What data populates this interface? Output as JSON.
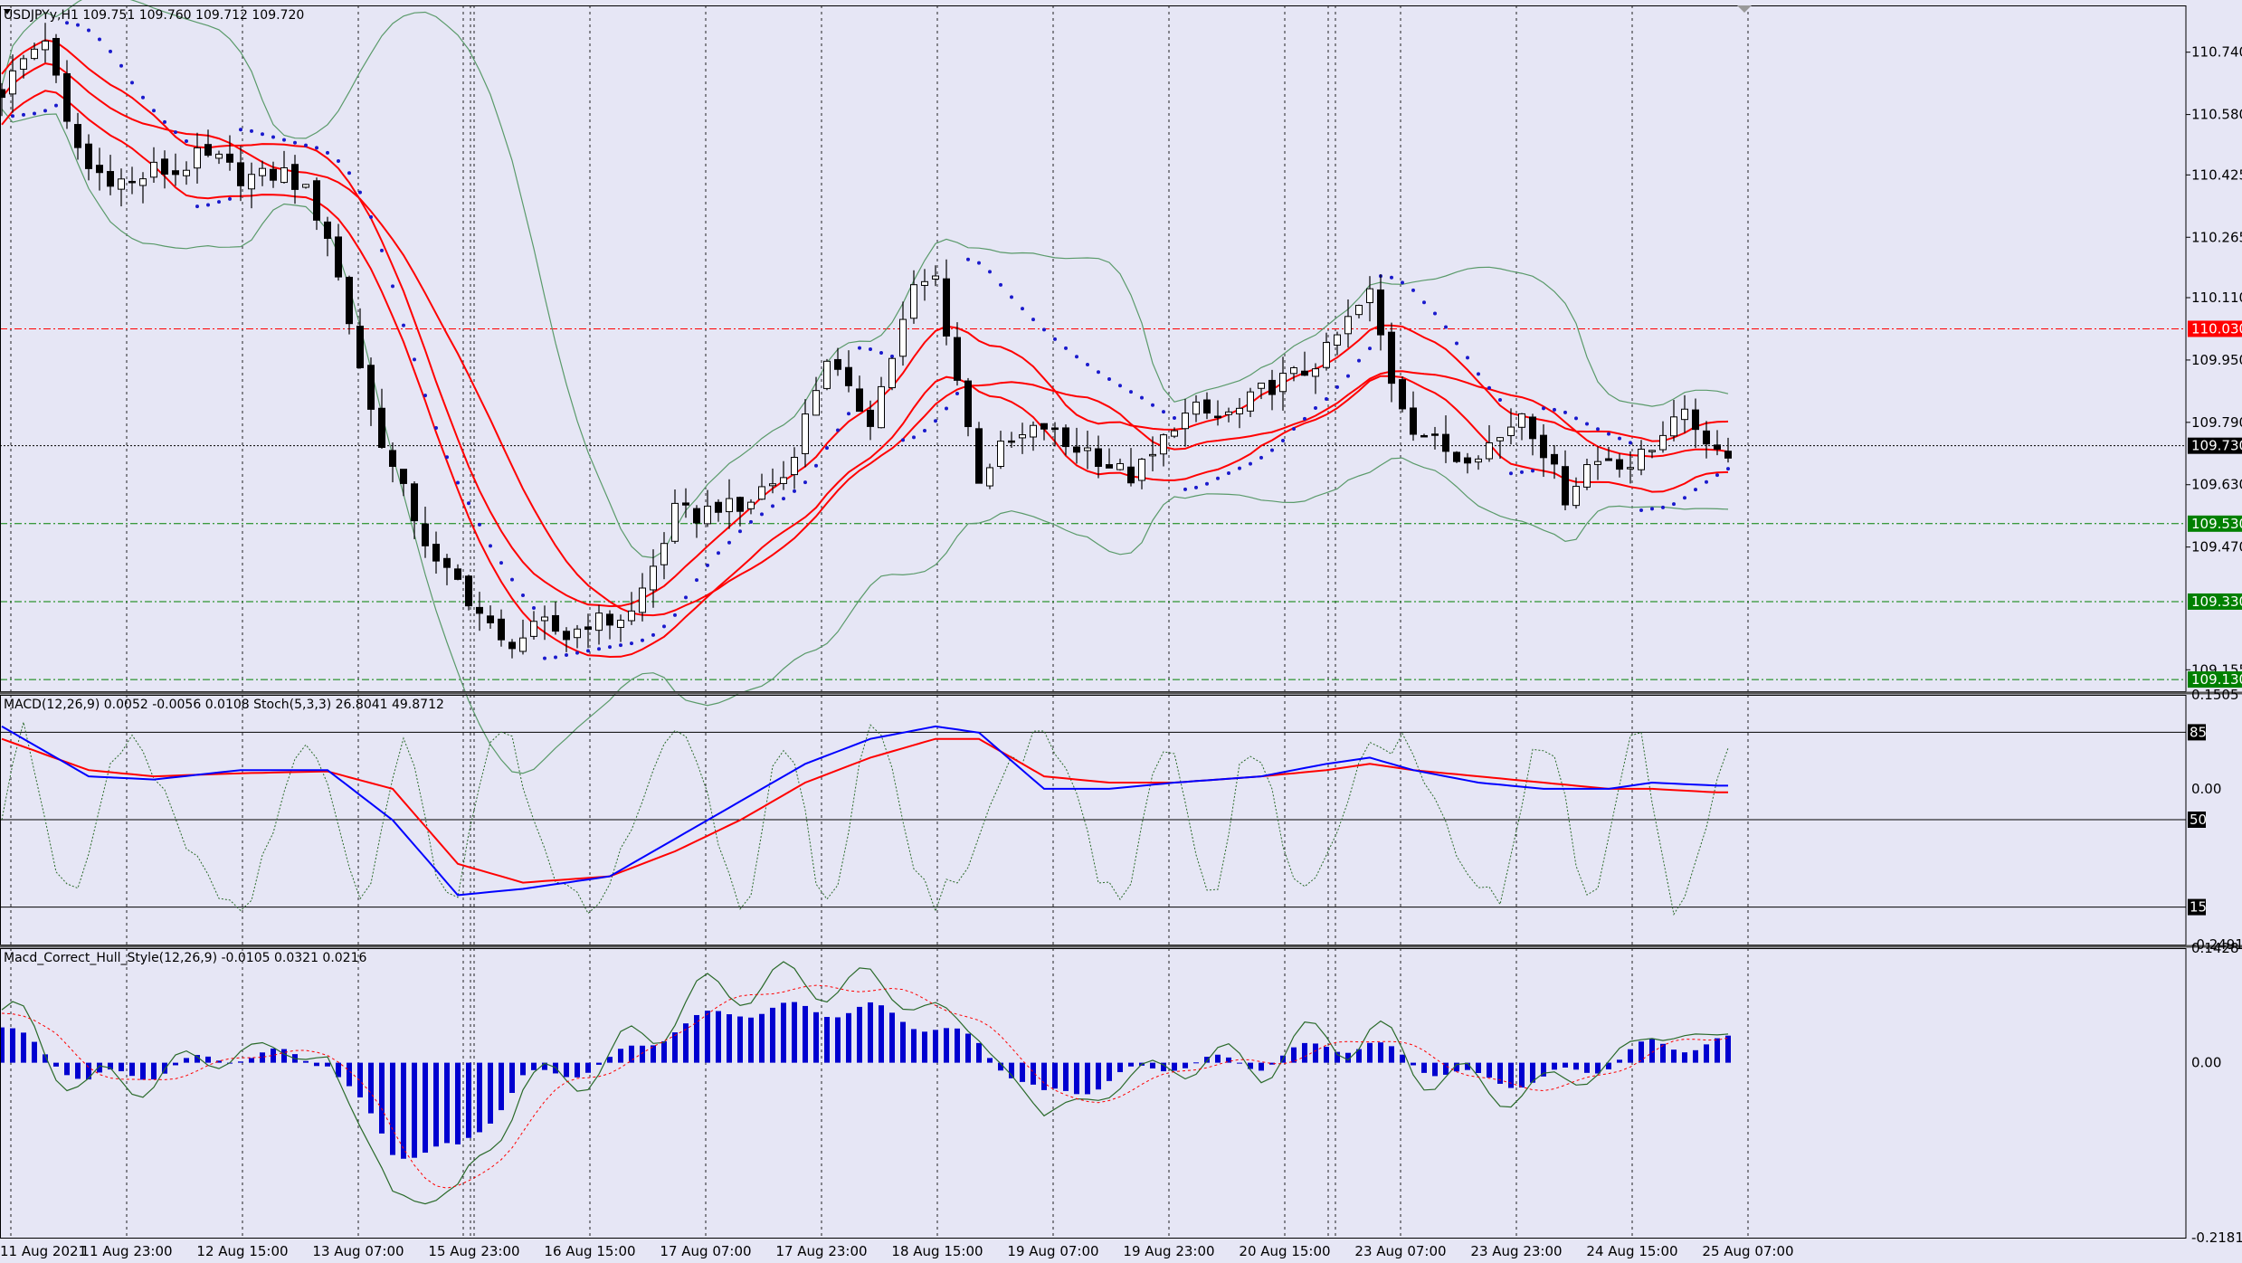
{
  "header": {
    "symbol_info": "USDJPYy,H1  109.751 109.760 109.712 109.720",
    "macd_info": "MACD(12,26,9) 0.0052 -0.0056 0.0108  Stoch(5,3,3) 26.8041 49.8712",
    "hull_info": "Macd_Correct_Hull_Style(12,26,9) -0.0105 0.0321 0.0216"
  },
  "colors": {
    "background": "#e6e6f5",
    "candle": "#000000",
    "bollinger": "#5a9a6a",
    "envelope": "#ff0000",
    "sar": "#1a1acc",
    "macd_main": "#0000ff",
    "macd_signal": "#ff0000",
    "stoch": "#2a6a2a",
    "hist": "#0000d0",
    "level_red": "#ff0000",
    "level_green": "#008000",
    "grid": "#000000"
  },
  "chart_data": [
    {
      "type": "candlestick",
      "name": "price",
      "ylim": [
        109.1,
        110.86
      ],
      "price_ticks": [
        "110.740",
        "110.580",
        "110.425",
        "110.265",
        "110.110",
        "109.950",
        "109.790",
        "109.630",
        "109.470",
        "109.155"
      ],
      "levels": [
        {
          "label": "110.030",
          "value": 110.03,
          "color": "#ff0000",
          "style": "dashdot"
        },
        {
          "label": "109.730",
          "value": 109.73,
          "color": "#000000",
          "style": "current"
        },
        {
          "label": "109.530",
          "value": 109.53,
          "color": "#008000",
          "style": "dashdot"
        },
        {
          "label": "109.330",
          "value": 109.33,
          "color": "#008000",
          "style": "dashdot"
        },
        {
          "label": "109.130",
          "value": 109.13,
          "color": "#008000",
          "style": "dashdot"
        }
      ],
      "time_labels": [
        "11 Aug 2021",
        "11 Aug 23:00",
        "12 Aug 15:00",
        "13 Aug 07:00",
        "15 Aug 23:00",
        "16 Aug 15:00",
        "17 Aug 07:00",
        "17 Aug 23:00",
        "18 Aug 15:00",
        "19 Aug 07:00",
        "19 Aug 23:00",
        "20 Aug 15:00",
        "23 Aug 07:00",
        "23 Aug 23:00",
        "24 Aug 15:00",
        "25 Aug 07:00"
      ],
      "close_path": [
        [
          0,
          110.64
        ],
        [
          2,
          110.72
        ],
        [
          4,
          110.78
        ],
        [
          6,
          110.55
        ],
        [
          8,
          110.44
        ],
        [
          10,
          110.42
        ],
        [
          12,
          110.4
        ],
        [
          14,
          110.44
        ],
        [
          16,
          110.43
        ],
        [
          18,
          110.47
        ],
        [
          20,
          110.46
        ],
        [
          22,
          110.42
        ],
        [
          24,
          110.42
        ],
        [
          26,
          110.43
        ],
        [
          28,
          110.38
        ],
        [
          30,
          110.27
        ],
        [
          32,
          110.05
        ],
        [
          34,
          109.82
        ],
        [
          36,
          109.67
        ],
        [
          38,
          109.55
        ],
        [
          40,
          109.42
        ],
        [
          42,
          109.38
        ],
        [
          44,
          109.3
        ],
        [
          46,
          109.22
        ],
        [
          48,
          109.24
        ],
        [
          50,
          109.27
        ],
        [
          52,
          109.24
        ],
        [
          54,
          109.28
        ],
        [
          56,
          109.28
        ],
        [
          58,
          109.3
        ],
        [
          60,
          109.42
        ],
        [
          62,
          109.56
        ],
        [
          64,
          109.55
        ],
        [
          66,
          109.58
        ],
        [
          68,
          109.56
        ],
        [
          70,
          109.62
        ],
        [
          72,
          109.65
        ],
        [
          74,
          109.8
        ],
        [
          76,
          109.96
        ],
        [
          78,
          109.86
        ],
        [
          80,
          109.8
        ],
        [
          82,
          109.96
        ],
        [
          84,
          110.13
        ],
        [
          86,
          110.16
        ],
        [
          88,
          109.9
        ],
        [
          90,
          109.65
        ],
        [
          92,
          109.72
        ],
        [
          94,
          109.75
        ],
        [
          96,
          109.78
        ],
        [
          98,
          109.73
        ],
        [
          100,
          109.72
        ],
        [
          102,
          109.68
        ],
        [
          104,
          109.65
        ],
        [
          106,
          109.7
        ],
        [
          108,
          109.79
        ],
        [
          110,
          109.82
        ],
        [
          112,
          109.8
        ],
        [
          114,
          109.82
        ],
        [
          116,
          109.87
        ],
        [
          118,
          109.9
        ],
        [
          120,
          109.92
        ],
        [
          122,
          109.97
        ],
        [
          124,
          110.05
        ],
        [
          126,
          110.12
        ],
        [
          128,
          109.9
        ],
        [
          130,
          109.78
        ],
        [
          132,
          109.74
        ],
        [
          134,
          109.7
        ],
        [
          136,
          109.72
        ],
        [
          138,
          109.75
        ],
        [
          140,
          109.82
        ],
        [
          142,
          109.72
        ],
        [
          144,
          109.6
        ],
        [
          146,
          109.68
        ],
        [
          148,
          109.7
        ],
        [
          150,
          109.68
        ],
        [
          152,
          109.72
        ],
        [
          154,
          109.82
        ],
        [
          156,
          109.78
        ],
        [
          158,
          109.72
        ]
      ]
    },
    {
      "type": "line",
      "name": "macd-stochastic",
      "ylim": [
        -0.2491,
        0.1505
      ],
      "ticks": [
        "0.1505",
        "0.00",
        "-0.2491"
      ],
      "level_badges": [
        "85",
        "50",
        "15"
      ],
      "stoch_levels": [
        85,
        50,
        15
      ],
      "macd_main": [
        [
          0,
          0.1
        ],
        [
          8,
          0.02
        ],
        [
          14,
          0.015
        ],
        [
          22,
          0.03
        ],
        [
          30,
          0.03
        ],
        [
          36,
          -0.05
        ],
        [
          42,
          -0.17
        ],
        [
          48,
          -0.16
        ],
        [
          56,
          -0.14
        ],
        [
          62,
          -0.08
        ],
        [
          68,
          -0.02
        ],
        [
          74,
          0.04
        ],
        [
          80,
          0.08
        ],
        [
          86,
          0.1
        ],
        [
          90,
          0.09
        ],
        [
          96,
          0.0
        ],
        [
          102,
          0.0
        ],
        [
          108,
          0.01
        ],
        [
          116,
          0.02
        ],
        [
          122,
          0.04
        ],
        [
          126,
          0.05
        ],
        [
          130,
          0.03
        ],
        [
          136,
          0.01
        ],
        [
          142,
          0.0
        ],
        [
          148,
          0.0
        ],
        [
          152,
          0.01
        ],
        [
          158,
          0.0052
        ]
      ],
      "macd_signal": [
        [
          0,
          0.08
        ],
        [
          8,
          0.03
        ],
        [
          14,
          0.02
        ],
        [
          22,
          0.025
        ],
        [
          30,
          0.028
        ],
        [
          36,
          0.0
        ],
        [
          42,
          -0.12
        ],
        [
          48,
          -0.15
        ],
        [
          56,
          -0.14
        ],
        [
          62,
          -0.1
        ],
        [
          68,
          -0.05
        ],
        [
          74,
          0.01
        ],
        [
          80,
          0.05
        ],
        [
          86,
          0.08
        ],
        [
          90,
          0.08
        ],
        [
          96,
          0.02
        ],
        [
          102,
          0.01
        ],
        [
          108,
          0.01
        ],
        [
          116,
          0.02
        ],
        [
          122,
          0.03
        ],
        [
          126,
          0.04
        ],
        [
          130,
          0.03
        ],
        [
          136,
          0.02
        ],
        [
          142,
          0.01
        ],
        [
          148,
          0.0
        ],
        [
          152,
          0.0
        ],
        [
          158,
          -0.0056
        ]
      ]
    },
    {
      "type": "bar",
      "name": "macd-hull",
      "ylim": [
        -0.2181,
        0.1428
      ],
      "ticks": [
        "0.1428",
        "0.00",
        "-0.2181"
      ]
    }
  ]
}
